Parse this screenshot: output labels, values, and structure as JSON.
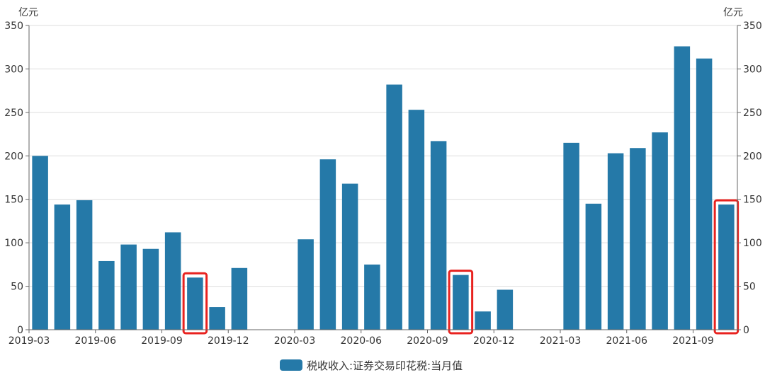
{
  "chart_data": {
    "type": "bar",
    "unit_left": "亿元",
    "unit_right": "亿元",
    "ylim": [
      0,
      350
    ],
    "yticks": [
      0,
      50,
      100,
      150,
      200,
      250,
      300,
      350
    ],
    "grid": true,
    "legend_position": "bottom",
    "colors": {
      "bar": "#2579a8",
      "highlight": "#e8221f",
      "grid": "#dddddd",
      "axis": "#666666"
    },
    "x_tick_labels": [
      "2019-03",
      "2019-06",
      "2019-09",
      "2019-12",
      "2020-03",
      "2020-06",
      "2020-09",
      "2020-12",
      "2021-03",
      "2021-06",
      "2021-09"
    ],
    "categories": [
      "2019-03",
      "2019-04",
      "2019-05",
      "2019-06",
      "2019-07",
      "2019-08",
      "2019-09",
      "2019-10",
      "2019-11",
      "2019-12",
      "2020-01",
      "2020-02",
      "2020-03",
      "2020-04",
      "2020-05",
      "2020-06",
      "2020-07",
      "2020-08",
      "2020-09",
      "2020-10",
      "2020-11",
      "2020-12",
      "2021-01",
      "2021-02",
      "2021-03",
      "2021-04",
      "2021-05",
      "2021-06",
      "2021-07",
      "2021-08",
      "2021-09",
      "2021-10"
    ],
    "series": [
      {
        "name": "税收收入:证券交易印花税:当月值",
        "values": [
          200,
          144,
          149,
          79,
          98,
          93,
          112,
          60,
          26,
          71,
          null,
          null,
          104,
          196,
          168,
          75,
          282,
          253,
          217,
          63,
          21,
          46,
          null,
          null,
          215,
          145,
          203,
          209,
          227,
          326,
          312,
          144
        ]
      }
    ],
    "highlighted_categories": [
      "2019-10",
      "2020-10",
      "2021-10"
    ]
  }
}
